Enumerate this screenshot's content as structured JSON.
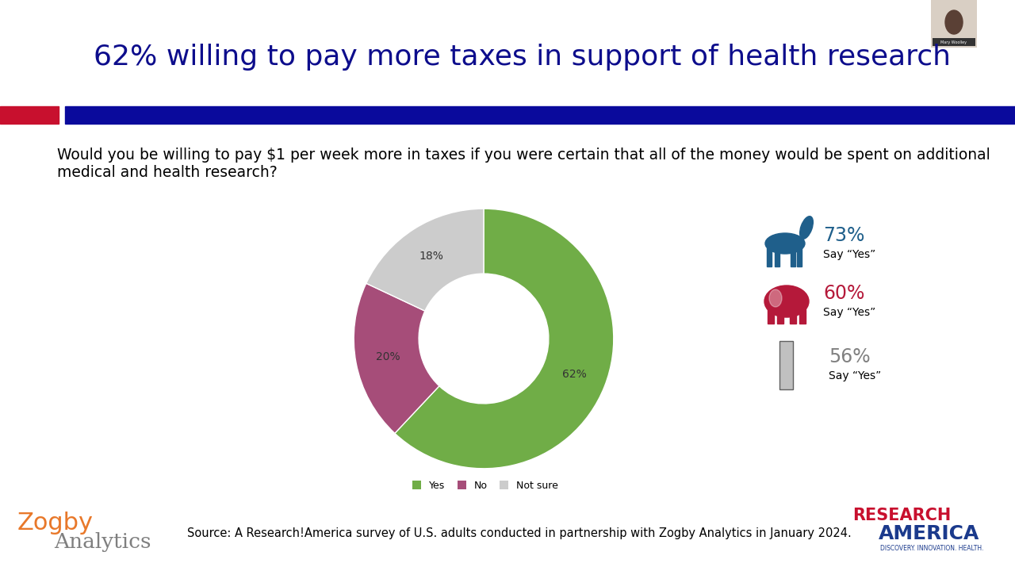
{
  "chart_data": {
    "type": "pie",
    "title": "62% willing to pay more taxes in support of health research",
    "subtitle": "Would you be willing to pay $1 per week more in taxes if you were certain that all of the money would be spent on additional medical and health research?",
    "categories": [
      "Yes",
      "No",
      "Not sure"
    ],
    "values": [
      62,
      20,
      18
    ],
    "value_labels": [
      "62%",
      "20%",
      "18%"
    ],
    "colors": [
      "#70ad47",
      "#a64d79",
      "#cccccc"
    ],
    "legend": "lower center",
    "data_labels": true,
    "breakdown": {
      "labels": [
        "73%",
        "60%",
        "56%"
      ],
      "note": "Say “Yes”",
      "colors": [
        "#1f5f8b",
        "#b5193a",
        "#808080"
      ]
    },
    "source": "Source: A Research!America survey of U.S. adults conducted in partnership with Zogby Analytics in January 2024.",
    "logos": {
      "left": [
        "Zogby",
        "Analytics"
      ],
      "right": [
        "RESEARCH",
        "AMERICA",
        "DISCOVERY. INNOVATION. HEALTH."
      ]
    },
    "presenter": "Mary Woolley"
  }
}
